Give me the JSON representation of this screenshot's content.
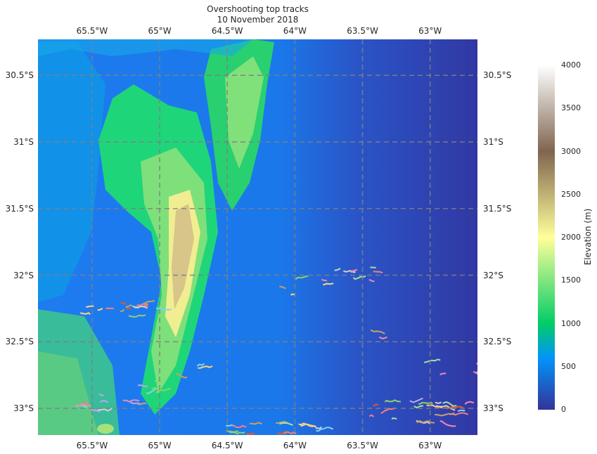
{
  "map": {
    "title_line1": "Overshooting top tracks",
    "title_line2": "10 November 2018",
    "lon_ticks": [
      {
        "label": "65.5°W",
        "lon": -65.5
      },
      {
        "label": "65°W",
        "lon": -65.0
      },
      {
        "label": "64.5°W",
        "lon": -64.5
      },
      {
        "label": "64°W",
        "lon": -64.0
      },
      {
        "label": "63.5°W",
        "lon": -63.5
      },
      {
        "label": "63°W",
        "lon": -63.0
      }
    ],
    "lat_ticks": [
      {
        "label": "30.5°S",
        "lat": -30.5
      },
      {
        "label": "31°S",
        "lat": -31.0
      },
      {
        "label": "31.5°S",
        "lat": -31.5
      },
      {
        "label": "32°S",
        "lat": -32.0
      },
      {
        "label": "32.5°S",
        "lat": -32.5
      },
      {
        "label": "33°S",
        "lat": -33.0
      }
    ],
    "extent": {
      "lon_min": -65.9,
      "lon_max": -62.65,
      "lat_min": -33.2,
      "lat_max": -30.23
    },
    "gridlines": true,
    "basemap": "terrain elevation",
    "track_colors": [
      "#e4572e",
      "#f28ab2",
      "#b9a7f0",
      "#8fd16a",
      "#ffd27f",
      "#7fd4f0",
      "#c8a064",
      "#f47f7f",
      "#a3e0a0",
      "#d0d0d0"
    ],
    "colorbar": {
      "label": "Elevation (m)",
      "ticks": [
        "0",
        "500",
        "1000",
        "1500",
        "2000",
        "2500",
        "3000",
        "3500",
        "4000"
      ],
      "min": 0,
      "max": 4000,
      "colors": [
        "#333399",
        "#0294fa",
        "#01cc66",
        "#ffff99",
        "#80654f",
        "#ffffff"
      ]
    }
  }
}
